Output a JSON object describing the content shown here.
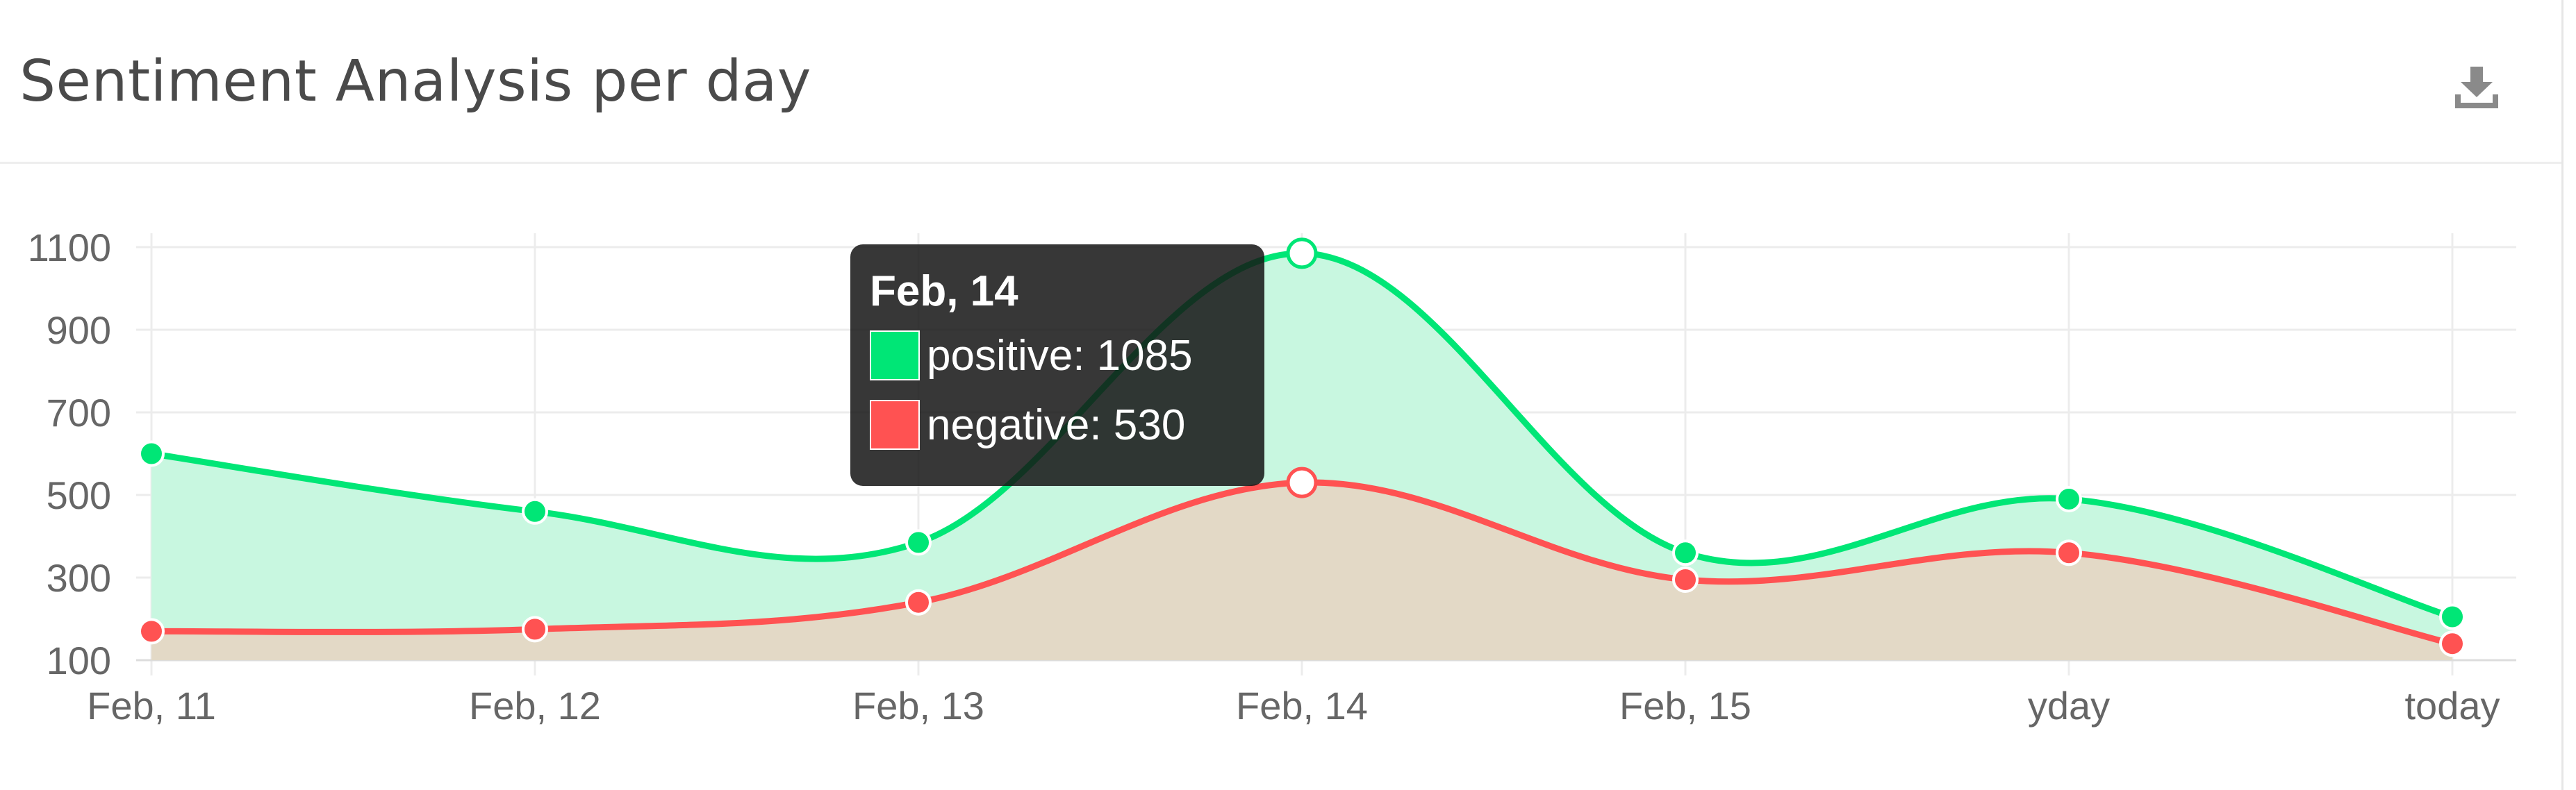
{
  "header": {
    "title": "Sentiment Analysis per day",
    "download_icon": "download-icon"
  },
  "colors": {
    "positive": "#00e676",
    "positive_fill": "#c8f7e0",
    "negative": "#ff5252",
    "negative_fill": "#e3d9c6",
    "grid": "#ececec",
    "tick": "#666666"
  },
  "chart_data": {
    "type": "area",
    "x": [
      "Feb, 11",
      "Feb, 12",
      "Feb, 13",
      "Feb, 14",
      "Feb, 15",
      "yday",
      "today"
    ],
    "series": [
      {
        "name": "positive",
        "values": [
          600,
          460,
          385,
          1085,
          360,
          490,
          205
        ]
      },
      {
        "name": "negative",
        "values": [
          170,
          175,
          240,
          530,
          295,
          360,
          140
        ]
      }
    ],
    "yticks": [
      100,
      300,
      500,
      700,
      900,
      1100
    ],
    "ylim": [
      100,
      1100
    ],
    "grid": true,
    "legend": "none"
  },
  "tooltip": {
    "title": "Feb, 14",
    "rows": [
      {
        "series": "positive",
        "label": "positive: 1085"
      },
      {
        "series": "negative",
        "label": "negative: 530"
      }
    ]
  }
}
